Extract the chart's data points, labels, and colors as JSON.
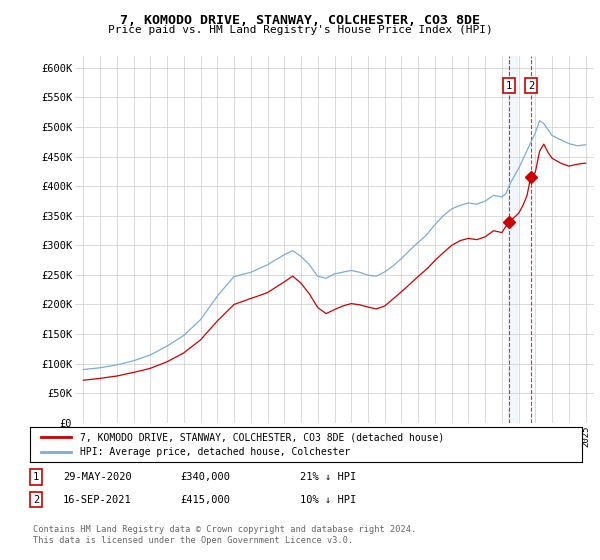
{
  "title": "7, KOMODO DRIVE, STANWAY, COLCHESTER, CO3 8DE",
  "subtitle": "Price paid vs. HM Land Registry's House Price Index (HPI)",
  "legend1_label": "7, KOMODO DRIVE, STANWAY, COLCHESTER, CO3 8DE (detached house)",
  "legend2_label": "HPI: Average price, detached house, Colchester",
  "annotation1_num": "1",
  "annotation1_date": "29-MAY-2020",
  "annotation1_price": "£340,000",
  "annotation1_hpi": "21% ↓ HPI",
  "annotation2_num": "2",
  "annotation2_date": "16-SEP-2021",
  "annotation2_price": "£415,000",
  "annotation2_hpi": "10% ↓ HPI",
  "footer": "Contains HM Land Registry data © Crown copyright and database right 2024.\nThis data is licensed under the Open Government Licence v3.0.",
  "line1_color": "#cc0000",
  "line2_color": "#7aaddb",
  "sale1_x": 2020.41,
  "sale1_y": 340000,
  "sale2_x": 2021.71,
  "sale2_y": 415000,
  "ylim": [
    0,
    620000
  ],
  "yticks": [
    0,
    50000,
    100000,
    150000,
    200000,
    250000,
    300000,
    350000,
    400000,
    450000,
    500000,
    550000,
    600000
  ],
  "ytick_labels": [
    "£0",
    "£50K",
    "£100K",
    "£150K",
    "£200K",
    "£250K",
    "£300K",
    "£350K",
    "£400K",
    "£450K",
    "£500K",
    "£550K",
    "£600K"
  ],
  "background_color": "#ffffff",
  "grid_color": "#cccccc",
  "xmin": 1994.5,
  "xmax": 2025.5
}
